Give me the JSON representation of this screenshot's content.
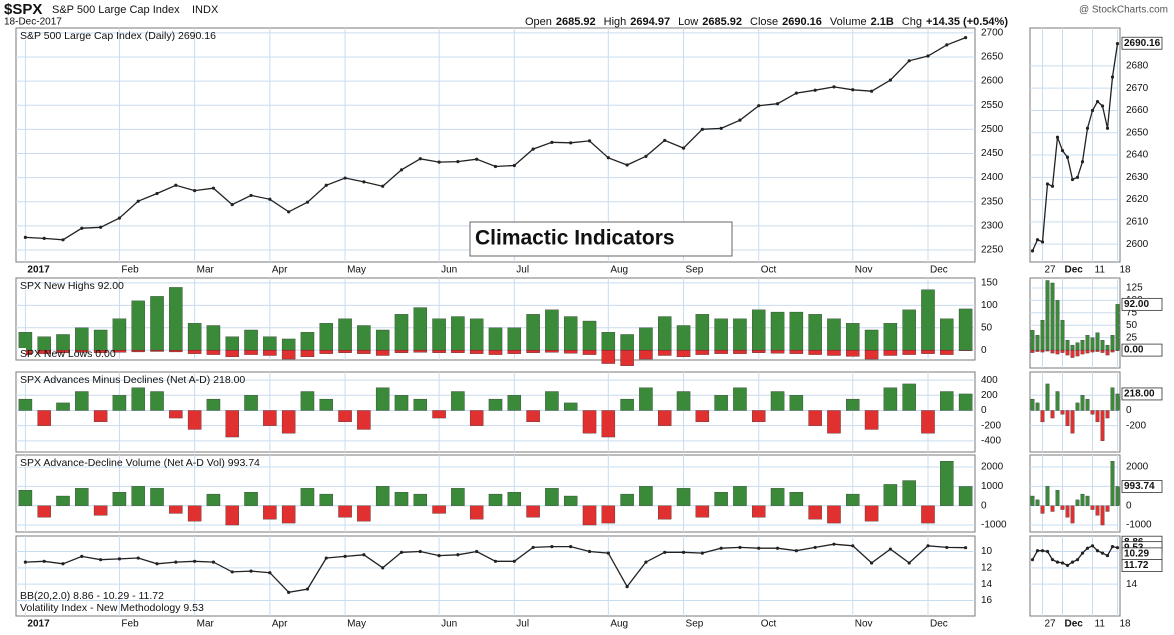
{
  "header": {
    "symbol": "$SPX",
    "name": "S&P 500 Large Cap Index",
    "exchange": "INDX",
    "date": "18-Dec-2017",
    "brand": "@ StockCharts.com",
    "quote": [
      {
        "label": "Open",
        "value": "2685.92"
      },
      {
        "label": "High",
        "value": "2694.97"
      },
      {
        "label": "Low",
        "value": "2685.92"
      },
      {
        "label": "Close",
        "value": "2690.16"
      },
      {
        "label": "Volume",
        "value": "2.1B"
      },
      {
        "label": "Chg",
        "value": "+14.35 (+0.54%)"
      }
    ]
  },
  "chart_data": [
    {
      "type": "line",
      "labels": [
        "S&P 500 Large Cap Index (Daily) 2690.16"
      ],
      "annotation": "Climactic Indicators",
      "categories": [
        "2017",
        null,
        null,
        null,
        null,
        "Feb",
        null,
        null,
        null,
        "Mar",
        null,
        null,
        null,
        "Apr",
        null,
        null,
        null,
        "May",
        null,
        null,
        null,
        null,
        "Jun",
        null,
        null,
        null,
        "Jul",
        null,
        null,
        null,
        null,
        "Aug",
        null,
        null,
        null,
        "Sep",
        null,
        null,
        null,
        "Oct",
        null,
        null,
        null,
        null,
        "Nov",
        null,
        null,
        null,
        "Dec",
        null,
        null
      ],
      "series": [
        {
          "color": "#222222",
          "values": [
            2276,
            2274,
            2271,
            2295,
            2297,
            2316,
            2351,
            2367,
            2384,
            2373,
            2378,
            2344,
            2363,
            2355,
            2329,
            2349,
            2384,
            2399,
            2391,
            2382,
            2416,
            2439,
            2432,
            2433,
            2438,
            2423,
            2425,
            2459,
            2473,
            2472,
            2476,
            2441,
            2426,
            2444,
            2477,
            2461,
            2500,
            2502,
            2519,
            2549,
            2553,
            2575,
            2581,
            2588,
            2582,
            2579,
            2602,
            2642,
            2652,
            2675,
            2690
          ]
        }
      ],
      "ylim": [
        2225,
        2710
      ],
      "yticks": [
        2250,
        2300,
        2350,
        2400,
        2450,
        2500,
        2550,
        2600,
        2650,
        2700
      ],
      "grid": true
    },
    {
      "type": "bar",
      "labels": [
        "SPX New Highs 92.00",
        "SPX New Lows 0.00"
      ],
      "categories": [
        "2017",
        null,
        null,
        null,
        null,
        "Feb",
        null,
        null,
        null,
        "Mar",
        null,
        null,
        null,
        "Apr",
        null,
        null,
        null,
        "May",
        null,
        null,
        null,
        null,
        "Jun",
        null,
        null,
        null,
        "Jul",
        null,
        null,
        null,
        null,
        "Aug",
        null,
        null,
        null,
        "Sep",
        null,
        null,
        null,
        "Oct",
        null,
        null,
        null,
        null,
        "Nov",
        null,
        null,
        null,
        "Dec",
        null,
        null
      ],
      "series": [
        {
          "color": "#3a8a3a",
          "values": [
            40,
            30,
            35,
            50,
            45,
            70,
            110,
            120,
            140,
            60,
            55,
            30,
            45,
            30,
            25,
            40,
            60,
            70,
            55,
            45,
            80,
            95,
            70,
            75,
            70,
            50,
            50,
            80,
            90,
            75,
            65,
            40,
            35,
            50,
            75,
            55,
            80,
            70,
            70,
            90,
            85,
            85,
            80,
            70,
            60,
            45,
            60,
            90,
            135,
            70,
            92
          ]
        },
        {
          "color": "#e03030",
          "values": [
            -10,
            -8,
            -6,
            -5,
            -6,
            -5,
            -4,
            -3,
            -4,
            -8,
            -10,
            -15,
            -10,
            -12,
            -20,
            -15,
            -8,
            -6,
            -8,
            -12,
            -6,
            -5,
            -6,
            -6,
            -8,
            -10,
            -8,
            -6,
            -5,
            -7,
            -10,
            -30,
            -35,
            -20,
            -12,
            -15,
            -10,
            -8,
            -8,
            -6,
            -7,
            -8,
            -10,
            -12,
            -14,
            -20,
            -12,
            -10,
            -8,
            -10,
            0
          ]
        }
      ],
      "ylim": [
        -22,
        161
      ],
      "yticks": [
        0,
        50,
        100,
        150
      ],
      "grid": true
    },
    {
      "type": "bar",
      "labels": [
        "SPX Advances Minus Declines (Net A-D) 218.00"
      ],
      "categories": [
        "2017",
        null,
        null,
        null,
        null,
        "Feb",
        null,
        null,
        null,
        "Mar",
        null,
        null,
        null,
        "Apr",
        null,
        null,
        null,
        "May",
        null,
        null,
        null,
        null,
        "Jun",
        null,
        null,
        null,
        "Jul",
        null,
        null,
        null,
        null,
        "Aug",
        null,
        null,
        null,
        "Sep",
        null,
        null,
        null,
        "Oct",
        null,
        null,
        null,
        null,
        "Nov",
        null,
        null,
        null,
        "Dec",
        null,
        null
      ],
      "series": [
        {
          "color": "#3a8a3a",
          "negative_color": "#e03030",
          "values": [
            150,
            -200,
            100,
            250,
            -150,
            200,
            300,
            250,
            -100,
            -250,
            150,
            -350,
            200,
            -200,
            -300,
            250,
            150,
            -150,
            -250,
            300,
            200,
            150,
            -100,
            250,
            -200,
            150,
            200,
            -150,
            250,
            100,
            -300,
            -350,
            150,
            300,
            -200,
            250,
            -150,
            200,
            300,
            -150,
            250,
            200,
            -200,
            -300,
            150,
            -250,
            300,
            350,
            -300,
            250,
            218
          ]
        }
      ],
      "ylim": [
        -547,
        507
      ],
      "yticks": [
        -400,
        -200,
        0,
        200,
        400
      ],
      "grid": true
    },
    {
      "type": "bar",
      "labels": [
        "SPX Advance-Decline Volume (Net A-D Vol) 993.74"
      ],
      "categories": [
        "2017",
        null,
        null,
        null,
        null,
        "Feb",
        null,
        null,
        null,
        "Mar",
        null,
        null,
        null,
        "Apr",
        null,
        null,
        null,
        "May",
        null,
        null,
        null,
        null,
        "Jun",
        null,
        null,
        null,
        "Jul",
        null,
        null,
        null,
        null,
        "Aug",
        null,
        null,
        null,
        "Sep",
        null,
        null,
        null,
        "Oct",
        null,
        null,
        null,
        null,
        "Nov",
        null,
        null,
        null,
        "Dec",
        null,
        null
      ],
      "series": [
        {
          "color": "#3a8a3a",
          "negative_color": "#e03030",
          "values": [
            800,
            -600,
            500,
            900,
            -500,
            700,
            1000,
            900,
            -400,
            -800,
            600,
            -1000,
            700,
            -700,
            -900,
            900,
            600,
            -600,
            -800,
            1000,
            700,
            600,
            -400,
            900,
            -700,
            600,
            700,
            -600,
            900,
            500,
            -1000,
            -900,
            600,
            1000,
            -700,
            900,
            -600,
            700,
            1000,
            -600,
            900,
            700,
            -700,
            -900,
            600,
            -800,
            1100,
            1300,
            -900,
            2300,
            993.74
          ]
        }
      ],
      "ylim": [
        -1360,
        2620
      ],
      "yticks": [
        -1000,
        0,
        1000,
        2000
      ],
      "grid": true
    },
    {
      "type": "line",
      "labels": [
        "BB(20,2.0) 8.86 - 10.29 - 11.72",
        "Volatility Index - New Methodology 9.53"
      ],
      "y_inverted": true,
      "categories": [
        "2017",
        null,
        null,
        null,
        null,
        "Feb",
        null,
        null,
        null,
        "Mar",
        null,
        null,
        null,
        "Apr",
        null,
        null,
        null,
        "May",
        null,
        null,
        null,
        null,
        "Jun",
        null,
        null,
        null,
        "Jul",
        null,
        null,
        null,
        null,
        "Aug",
        null,
        null,
        null,
        "Sep",
        null,
        null,
        null,
        "Oct",
        null,
        null,
        null,
        null,
        "Nov",
        null,
        null,
        null,
        "Dec",
        null,
        null
      ],
      "series": [
        {
          "color": "#222222",
          "values": [
            11.3,
            11.2,
            11.5,
            10.6,
            11.0,
            10.9,
            10.8,
            11.5,
            11.3,
            11.2,
            11.3,
            12.5,
            12.4,
            12.6,
            15.0,
            14.6,
            10.8,
            10.6,
            10.4,
            12.0,
            10.1,
            10.0,
            10.5,
            10.4,
            10.0,
            11.2,
            11.2,
            9.5,
            9.4,
            9.4,
            10.0,
            10.2,
            14.3,
            11.3,
            10.1,
            10.1,
            10.2,
            9.6,
            9.5,
            9.6,
            9.6,
            9.9,
            9.5,
            9.1,
            9.3,
            11.4,
            9.7,
            11.4,
            9.3,
            9.5,
            9.53
          ]
        }
      ],
      "ylim": [
        8.1,
        17.9
      ],
      "yticks": [
        10,
        12,
        14,
        16
      ],
      "grid": true
    },
    {
      "type": "line",
      "categories": [
        null,
        null,
        "27",
        null,
        null,
        null,
        "Dec",
        null,
        null,
        null,
        null,
        null,
        "11",
        null,
        null,
        null,
        null,
        "18"
      ],
      "series": [
        {
          "color": "#222222",
          "values": [
            2597,
            2602,
            2601,
            2627,
            2626,
            2648,
            2642,
            2639,
            2629,
            2630,
            2637,
            2652,
            2660,
            2664,
            2662,
            2652,
            2675,
            2690
          ]
        }
      ],
      "ylim": [
        2592,
        2697
      ],
      "yticks": [
        2600,
        2610,
        2620,
        2630,
        2640,
        2650,
        2660,
        2670,
        2680
      ],
      "grid": true,
      "value_boxes": [
        {
          "value": 2690.16,
          "label": "2690.16"
        }
      ]
    },
    {
      "type": "bar",
      "categories": [
        null,
        null,
        "27",
        null,
        null,
        null,
        "Dec",
        null,
        null,
        null,
        null,
        null,
        "11",
        null,
        null,
        null,
        null,
        "18"
      ],
      "series": [
        {
          "color": "#3a8a3a",
          "values": [
            40,
            30,
            60,
            140,
            135,
            100,
            60,
            20,
            10,
            15,
            20,
            30,
            25,
            35,
            20,
            10,
            30,
            92
          ]
        },
        {
          "color": "#e03030",
          "values": [
            -5,
            -3,
            -4,
            -2,
            -6,
            -8,
            -5,
            -10,
            -15,
            -12,
            -8,
            -6,
            -4,
            -3,
            -5,
            -10,
            -4,
            0
          ]
        }
      ],
      "ylim": [
        -36,
        145
      ],
      "yticks": [
        0,
        25,
        50,
        75,
        100,
        125
      ],
      "grid": true,
      "value_boxes": [
        {
          "value": 92,
          "label": "92.00"
        },
        {
          "value": 0,
          "label": "0.00"
        }
      ]
    },
    {
      "type": "bar",
      "categories": [
        null,
        null,
        "27",
        null,
        null,
        null,
        "Dec",
        null,
        null,
        null,
        null,
        null,
        "11",
        null,
        null,
        null,
        null,
        "18"
      ],
      "series": [
        {
          "color": "#3a8a3a",
          "negative_color": "#e03030",
          "values": [
            150,
            100,
            -150,
            350,
            -100,
            250,
            -50,
            -200,
            -300,
            100,
            200,
            150,
            -50,
            -150,
            -400,
            -100,
            300,
            218
          ]
        }
      ],
      "ylim": [
        -547,
        507
      ],
      "yticks": [
        -200,
        0,
        200
      ],
      "grid": true,
      "value_boxes": [
        {
          "value": 218,
          "label": "218.00"
        }
      ]
    },
    {
      "type": "bar",
      "categories": [
        null,
        null,
        "27",
        null,
        null,
        null,
        "Dec",
        null,
        null,
        null,
        null,
        null,
        "11",
        null,
        null,
        null,
        null,
        "18"
      ],
      "series": [
        {
          "color": "#3a8a3a",
          "negative_color": "#e03030",
          "values": [
            500,
            300,
            -400,
            1000,
            -300,
            800,
            -200,
            -600,
            -900,
            300,
            600,
            500,
            -200,
            -500,
            -1000,
            -300,
            2300,
            993.74
          ]
        }
      ],
      "ylim": [
        -1360,
        2620
      ],
      "yticks": [
        -1000,
        0,
        1000,
        2000
      ],
      "grid": true,
      "value_boxes": [
        {
          "value": 993.74,
          "label": "993.74"
        }
      ]
    },
    {
      "type": "line",
      "y_inverted": true,
      "categories": [
        null,
        null,
        "27",
        null,
        null,
        null,
        "Dec",
        null,
        null,
        null,
        null,
        null,
        "11",
        null,
        null,
        null,
        null,
        "18"
      ],
      "series": [
        {
          "color": "#222222",
          "values": [
            11.0,
            9.9,
            9.9,
            10.0,
            11.0,
            11.3,
            11.4,
            11.7,
            11.3,
            11.0,
            10.2,
            9.6,
            9.3,
            9.9,
            10.2,
            10.5,
            9.4,
            9.53
          ]
        }
      ],
      "ylim": [
        8.1,
        17.9
      ],
      "yticks": [
        10,
        12,
        14
      ],
      "grid": true,
      "value_boxes": [
        {
          "value": 8.86,
          "label": "8.86"
        },
        {
          "value": 9.53,
          "label": "9.53"
        },
        {
          "value": 10.29,
          "label": "10.29"
        },
        {
          "value": 11.72,
          "label": "11.72"
        }
      ]
    }
  ]
}
